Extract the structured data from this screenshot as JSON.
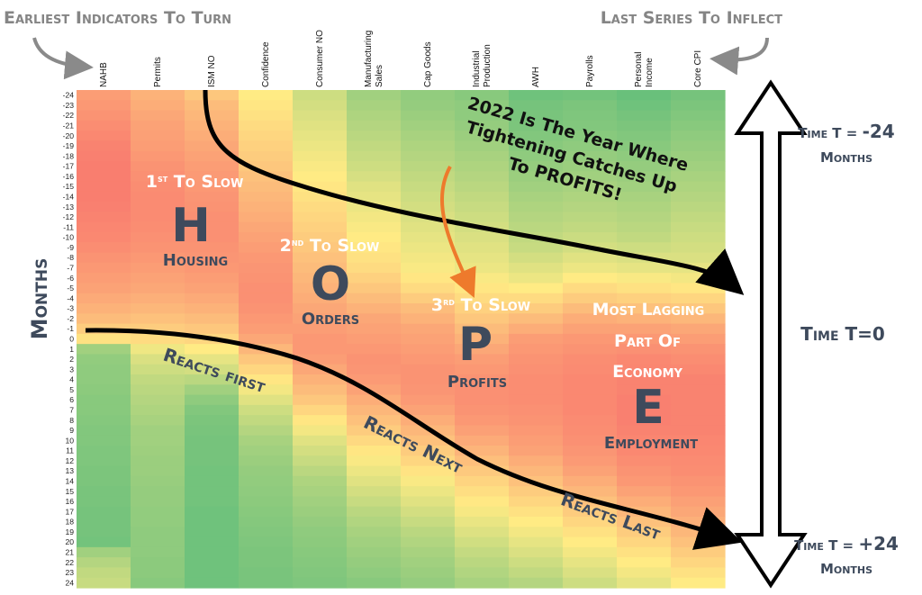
{
  "chart_data": {
    "type": "heatmap",
    "title_left": "Earliest Indicators To Turn",
    "title_right": "Last Series To Inflect",
    "ylabel": "Months",
    "columns": [
      "NAHB",
      "Permits",
      "ISM NO",
      "Confidence",
      "Consumer NO",
      "Manufacturing Sales",
      "Cap Goods",
      "Industrial Production",
      "AWH",
      "Payrolls",
      "Personal Income",
      "Core CPI"
    ],
    "column_label_lines": [
      [
        "NAHB"
      ],
      [
        "Permits"
      ],
      [
        "ISM NO"
      ],
      [
        "Confidence"
      ],
      [
        "Consumer NO"
      ],
      [
        "Manufacturing",
        "Sales"
      ],
      [
        "Cap Goods"
      ],
      [
        "Industrial",
        "Production"
      ],
      [
        "AWH"
      ],
      [
        "Payrolls"
      ],
      [
        "Personal",
        "Income"
      ],
      [
        "Core CPI"
      ]
    ],
    "months": [
      "-24",
      "-23",
      "-22",
      "-21",
      "-20",
      "-19",
      "-18",
      "-17",
      "-16",
      "-15",
      "-14",
      "-13",
      "-12",
      "-11",
      "-10",
      "-9",
      "-8",
      "-7",
      "-6",
      "-5",
      "-4",
      "-3",
      "-2",
      "-1",
      "0",
      "1",
      "2",
      "3",
      "4",
      "5",
      "6",
      "7",
      "8",
      "9",
      "10",
      "11",
      "12",
      "13",
      "14",
      "15",
      "16",
      "17",
      "18",
      "19",
      "20",
      "21",
      "22",
      "23",
      "24"
    ],
    "color_scale": {
      "high": "#63be7b",
      "mid": "#ffeb84",
      "low": "#f8696b"
    },
    "values": [
      [
        0.2,
        0.28,
        0.36,
        0.5,
        0.66,
        0.8,
        0.85,
        0.88,
        0.96,
        0.95,
        0.98,
        0.94
      ],
      [
        0.18,
        0.26,
        0.32,
        0.48,
        0.64,
        0.78,
        0.84,
        0.86,
        0.94,
        0.92,
        0.96,
        0.92
      ],
      [
        0.16,
        0.24,
        0.3,
        0.46,
        0.62,
        0.76,
        0.82,
        0.86,
        0.93,
        0.91,
        0.94,
        0.9
      ],
      [
        0.14,
        0.22,
        0.28,
        0.44,
        0.6,
        0.74,
        0.8,
        0.84,
        0.92,
        0.9,
        0.92,
        0.88
      ],
      [
        0.12,
        0.21,
        0.26,
        0.42,
        0.58,
        0.72,
        0.78,
        0.82,
        0.9,
        0.88,
        0.9,
        0.86
      ],
      [
        0.1,
        0.2,
        0.24,
        0.4,
        0.56,
        0.7,
        0.76,
        0.8,
        0.88,
        0.86,
        0.88,
        0.84
      ],
      [
        0.09,
        0.18,
        0.22,
        0.38,
        0.54,
        0.68,
        0.74,
        0.78,
        0.86,
        0.84,
        0.86,
        0.82
      ],
      [
        0.08,
        0.16,
        0.2,
        0.36,
        0.52,
        0.66,
        0.72,
        0.76,
        0.84,
        0.82,
        0.84,
        0.8
      ],
      [
        0.08,
        0.15,
        0.19,
        0.34,
        0.5,
        0.63,
        0.7,
        0.74,
        0.82,
        0.8,
        0.82,
        0.78
      ],
      [
        0.08,
        0.14,
        0.18,
        0.32,
        0.48,
        0.6,
        0.68,
        0.72,
        0.8,
        0.78,
        0.8,
        0.76
      ],
      [
        0.08,
        0.13,
        0.17,
        0.3,
        0.46,
        0.58,
        0.66,
        0.7,
        0.78,
        0.76,
        0.78,
        0.74
      ],
      [
        0.09,
        0.13,
        0.16,
        0.28,
        0.44,
        0.56,
        0.64,
        0.68,
        0.76,
        0.74,
        0.76,
        0.72
      ],
      [
        0.1,
        0.13,
        0.15,
        0.26,
        0.42,
        0.54,
        0.62,
        0.66,
        0.74,
        0.72,
        0.74,
        0.7
      ],
      [
        0.11,
        0.14,
        0.15,
        0.24,
        0.4,
        0.52,
        0.6,
        0.64,
        0.72,
        0.7,
        0.72,
        0.68
      ],
      [
        0.12,
        0.15,
        0.15,
        0.22,
        0.38,
        0.5,
        0.58,
        0.62,
        0.7,
        0.67,
        0.7,
        0.66
      ],
      [
        0.14,
        0.16,
        0.16,
        0.2,
        0.36,
        0.48,
        0.56,
        0.6,
        0.68,
        0.64,
        0.66,
        0.64
      ],
      [
        0.16,
        0.18,
        0.17,
        0.18,
        0.34,
        0.46,
        0.54,
        0.58,
        0.64,
        0.6,
        0.62,
        0.62
      ],
      [
        0.18,
        0.2,
        0.18,
        0.17,
        0.32,
        0.44,
        0.52,
        0.56,
        0.6,
        0.56,
        0.58,
        0.58
      ],
      [
        0.2,
        0.22,
        0.2,
        0.16,
        0.3,
        0.4,
        0.48,
        0.52,
        0.56,
        0.5,
        0.52,
        0.54
      ],
      [
        0.22,
        0.24,
        0.22,
        0.15,
        0.28,
        0.36,
        0.44,
        0.48,
        0.5,
        0.44,
        0.46,
        0.48
      ],
      [
        0.25,
        0.27,
        0.25,
        0.15,
        0.26,
        0.32,
        0.38,
        0.44,
        0.44,
        0.38,
        0.4,
        0.42
      ],
      [
        0.28,
        0.3,
        0.28,
        0.16,
        0.24,
        0.28,
        0.32,
        0.4,
        0.38,
        0.32,
        0.34,
        0.36
      ],
      [
        0.32,
        0.34,
        0.32,
        0.18,
        0.22,
        0.24,
        0.28,
        0.36,
        0.32,
        0.26,
        0.28,
        0.3
      ],
      [
        0.38,
        0.38,
        0.36,
        0.2,
        0.2,
        0.22,
        0.24,
        0.32,
        0.26,
        0.22,
        0.22,
        0.24
      ],
      [
        0.46,
        0.44,
        0.42,
        0.24,
        0.18,
        0.2,
        0.22,
        0.28,
        0.2,
        0.18,
        0.18,
        0.2
      ],
      [
        0.8,
        0.55,
        0.5,
        0.3,
        0.18,
        0.18,
        0.2,
        0.24,
        0.18,
        0.16,
        0.15,
        0.16
      ],
      [
        0.85,
        0.62,
        0.58,
        0.36,
        0.2,
        0.16,
        0.18,
        0.2,
        0.16,
        0.14,
        0.12,
        0.14
      ],
      [
        0.86,
        0.66,
        0.64,
        0.42,
        0.24,
        0.17,
        0.16,
        0.18,
        0.15,
        0.13,
        0.11,
        0.12
      ],
      [
        0.86,
        0.7,
        0.72,
        0.48,
        0.28,
        0.19,
        0.16,
        0.16,
        0.14,
        0.12,
        0.1,
        0.1
      ],
      [
        0.87,
        0.72,
        0.8,
        0.54,
        0.32,
        0.22,
        0.17,
        0.15,
        0.14,
        0.12,
        0.1,
        0.1
      ],
      [
        0.88,
        0.74,
        0.86,
        0.6,
        0.36,
        0.26,
        0.19,
        0.15,
        0.14,
        0.12,
        0.09,
        0.1
      ],
      [
        0.88,
        0.76,
        0.9,
        0.66,
        0.42,
        0.3,
        0.22,
        0.16,
        0.15,
        0.12,
        0.09,
        0.1
      ],
      [
        0.89,
        0.78,
        0.92,
        0.7,
        0.48,
        0.34,
        0.26,
        0.18,
        0.16,
        0.13,
        0.09,
        0.1
      ],
      [
        0.9,
        0.8,
        0.93,
        0.74,
        0.54,
        0.38,
        0.3,
        0.21,
        0.18,
        0.14,
        0.1,
        0.1
      ],
      [
        0.9,
        0.8,
        0.94,
        0.78,
        0.6,
        0.43,
        0.34,
        0.25,
        0.2,
        0.15,
        0.11,
        0.11
      ],
      [
        0.91,
        0.81,
        0.94,
        0.8,
        0.64,
        0.48,
        0.38,
        0.29,
        0.22,
        0.17,
        0.12,
        0.12
      ],
      [
        0.91,
        0.82,
        0.94,
        0.82,
        0.68,
        0.52,
        0.42,
        0.33,
        0.26,
        0.19,
        0.14,
        0.13
      ],
      [
        0.92,
        0.82,
        0.95,
        0.84,
        0.72,
        0.56,
        0.47,
        0.37,
        0.3,
        0.22,
        0.16,
        0.14
      ],
      [
        0.92,
        0.83,
        0.95,
        0.85,
        0.76,
        0.6,
        0.52,
        0.41,
        0.34,
        0.26,
        0.18,
        0.16
      ],
      [
        0.93,
        0.84,
        0.95,
        0.86,
        0.78,
        0.64,
        0.56,
        0.45,
        0.38,
        0.3,
        0.22,
        0.18
      ],
      [
        0.93,
        0.84,
        0.95,
        0.87,
        0.8,
        0.68,
        0.6,
        0.49,
        0.42,
        0.34,
        0.26,
        0.21
      ],
      [
        0.94,
        0.85,
        0.96,
        0.88,
        0.82,
        0.72,
        0.64,
        0.53,
        0.46,
        0.38,
        0.3,
        0.24
      ],
      [
        0.94,
        0.85,
        0.96,
        0.89,
        0.84,
        0.75,
        0.68,
        0.57,
        0.5,
        0.42,
        0.34,
        0.27
      ],
      [
        0.94,
        0.86,
        0.96,
        0.9,
        0.86,
        0.78,
        0.72,
        0.61,
        0.54,
        0.46,
        0.38,
        0.3
      ],
      [
        0.95,
        0.86,
        0.96,
        0.91,
        0.87,
        0.8,
        0.75,
        0.65,
        0.58,
        0.5,
        0.42,
        0.34
      ],
      [
        0.8,
        0.86,
        0.96,
        0.92,
        0.88,
        0.82,
        0.78,
        0.69,
        0.62,
        0.54,
        0.46,
        0.38
      ],
      [
        0.74,
        0.87,
        0.96,
        0.92,
        0.89,
        0.84,
        0.8,
        0.72,
        0.66,
        0.58,
        0.5,
        0.42
      ],
      [
        0.7,
        0.87,
        0.96,
        0.93,
        0.9,
        0.86,
        0.82,
        0.75,
        0.7,
        0.62,
        0.54,
        0.46
      ],
      [
        0.68,
        0.88,
        0.96,
        0.93,
        0.91,
        0.88,
        0.84,
        0.78,
        0.74,
        0.66,
        0.58,
        0.5
      ]
    ]
  },
  "annotations": {
    "phase_h": {
      "prefix": "1",
      "sup": "st",
      "suffix": " To Slow",
      "letter": "H",
      "label": "Housing"
    },
    "phase_o": {
      "prefix": "2",
      "sup": "nd",
      "suffix": " To Slow",
      "letter": "O",
      "label": "Orders"
    },
    "phase_p": {
      "prefix": "3",
      "sup": "rd",
      "suffix": " To Slow",
      "letter": "P",
      "label": "Profits"
    },
    "phase_e": {
      "lines": [
        "Most Lagging",
        "Part Of",
        "Economy"
      ],
      "letter": "E",
      "label": "Employment"
    },
    "callout": [
      "2022 Is The Year Where",
      "Tightening Catches Up",
      "To PROFITS!"
    ],
    "reacts_first": "Reacts first",
    "reacts_next": "Reacts Next",
    "reacts_last": "Reacts Last",
    "time_top": [
      "Time T = ",
      "-24",
      "Months"
    ],
    "time_mid": "Time T=0",
    "time_bottom": [
      "Time T = ",
      "+24",
      "Months"
    ]
  }
}
